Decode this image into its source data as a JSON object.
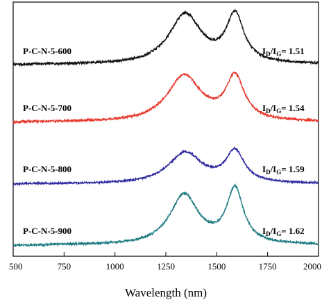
{
  "chart_data": {
    "type": "line",
    "title": "",
    "xlabel": "Wavelength (nm)",
    "ylabel": "",
    "xlim": [
      500,
      2000
    ],
    "x_ticks": [
      500,
      750,
      1000,
      1250,
      1500,
      1750,
      2000
    ],
    "y_ticks_shown": false,
    "grid": false,
    "legend": "none",
    "series": [
      {
        "name": "P-C-N-5-600",
        "color": "#111111",
        "ratio": {
          "prefix": "I",
          "sub1": "D",
          "mid": "/I",
          "sub2": "G",
          "value": "= 1.51"
        },
        "peaks": [
          {
            "x": 1345,
            "value": 0.92,
            "width": 95
          },
          {
            "x": 1590,
            "value": 0.88,
            "width": 52
          }
        ],
        "baseline": 0.0,
        "noise": 0.02,
        "seed": 7
      },
      {
        "name": "P-C-N-5-700",
        "color": "#e8392e",
        "ratio": {
          "prefix": "I",
          "sub1": "D",
          "mid": "/I",
          "sub2": "G",
          "value": "= 1.54"
        },
        "peaks": [
          {
            "x": 1340,
            "value": 0.92,
            "width": 100
          },
          {
            "x": 1590,
            "value": 0.86,
            "width": 55
          }
        ],
        "baseline": 0.0,
        "noise": 0.02,
        "seed": 19
      },
      {
        "name": "P-C-N-5-800",
        "color": "#2f2a9e",
        "ratio": {
          "prefix": "I",
          "sub1": "D",
          "mid": "/I",
          "sub2": "G",
          "value": "= 1.59"
        },
        "peaks": [
          {
            "x": 1345,
            "value": 0.72,
            "width": 100
          },
          {
            "x": 1590,
            "value": 0.72,
            "width": 55
          }
        ],
        "baseline": 0.0,
        "noise": 0.02,
        "seed": 31
      },
      {
        "name": "P-C-N-5-900",
        "color": "#1d7a80",
        "ratio": {
          "prefix": "I",
          "sub1": "D",
          "mid": "/I",
          "sub2": "G",
          "value": "= 1.62"
        },
        "peaks": [
          {
            "x": 1340,
            "value": 0.92,
            "width": 85
          },
          {
            "x": 1590,
            "value": 1.0,
            "width": 50
          }
        ],
        "baseline": 0.0,
        "noise": 0.018,
        "seed": 43
      }
    ]
  }
}
